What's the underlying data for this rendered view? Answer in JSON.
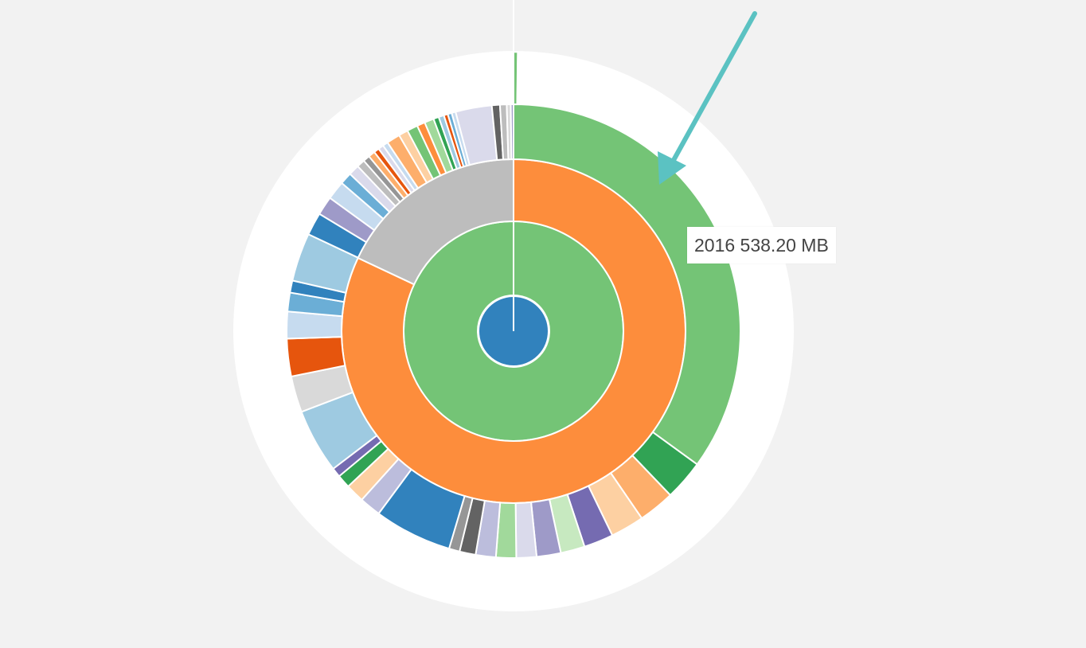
{
  "tooltip": {
    "label": "2016 538.20 MB"
  },
  "annotation": {
    "arrow_color": "#5bc2c2"
  },
  "chart_data": {
    "type": "sunburst",
    "root_color": "#3182bd",
    "ring1": [
      {
        "value": 100,
        "color": "#74c476"
      }
    ],
    "ring2": [
      {
        "value": 82.0,
        "color": "#fd8d3c"
      },
      {
        "value": 18.0,
        "color": "#bdbdbd"
      }
    ],
    "ring3": [
      {
        "value": 36.6,
        "color": "#74c476"
      },
      {
        "value": 3.0,
        "color": "#31a354"
      },
      {
        "value": 2.7,
        "color": "#fdae6b"
      },
      {
        "value": 2.5,
        "color": "#fdd0a2"
      },
      {
        "value": 2.2,
        "color": "#756bb1"
      },
      {
        "value": 1.8,
        "color": "#c7e9c0"
      },
      {
        "value": 1.8,
        "color": "#9e9ac8"
      },
      {
        "value": 1.5,
        "color": "#dadaeb"
      },
      {
        "value": 1.5,
        "color": "#a1d99b"
      },
      {
        "value": 1.5,
        "color": "#bcbddc"
      },
      {
        "value": 1.2,
        "color": "#636363"
      },
      {
        "value": 0.8,
        "color": "#969696"
      },
      {
        "value": 5.8,
        "color": "#3182bd"
      },
      {
        "value": 1.6,
        "color": "#bcbddc"
      },
      {
        "value": 1.4,
        "color": "#fdd0a2"
      },
      {
        "value": 1.0,
        "color": "#31a354"
      },
      {
        "value": 0.7,
        "color": "#756bb1"
      },
      {
        "value": 4.8,
        "color": "#9ecae1"
      },
      {
        "value": 2.7,
        "color": "#d9d9d9"
      },
      {
        "value": 2.8,
        "color": "#e6550d"
      },
      {
        "value": 2.0,
        "color": "#c6dbef"
      },
      {
        "value": 1.4,
        "color": "#6baed6"
      },
      {
        "value": 0.9,
        "color": "#3182bd"
      },
      {
        "value": 3.6,
        "color": "#9ecae1"
      },
      {
        "value": 1.7,
        "color": "#3182bd"
      },
      {
        "value": 1.4,
        "color": "#9e9ac8"
      },
      {
        "value": 1.4,
        "color": "#c6dbef"
      },
      {
        "value": 0.9,
        "color": "#6baed6"
      },
      {
        "value": 0.8,
        "color": "#dadaeb"
      },
      {
        "value": 0.6,
        "color": "#bdbdbd"
      },
      {
        "value": 0.5,
        "color": "#969696"
      },
      {
        "value": 0.5,
        "color": "#fdae6b"
      },
      {
        "value": 0.4,
        "color": "#e6550d"
      },
      {
        "value": 0.4,
        "color": "#dadaeb"
      },
      {
        "value": 0.4,
        "color": "#c6dbef"
      },
      {
        "value": 1.0,
        "color": "#fdae6b"
      },
      {
        "value": 0.7,
        "color": "#fdd0a2"
      },
      {
        "value": 0.8,
        "color": "#74c476"
      },
      {
        "value": 0.6,
        "color": "#fd8d3c"
      },
      {
        "value": 0.7,
        "color": "#a1d99b"
      },
      {
        "value": 0.4,
        "color": "#31a354"
      },
      {
        "value": 0.4,
        "color": "#9ecae1"
      },
      {
        "value": 0.3,
        "color": "#e6550d"
      },
      {
        "value": 0.3,
        "color": "#6baed6"
      },
      {
        "value": 0.3,
        "color": "#c6dbef"
      },
      {
        "value": 2.7,
        "color": "#dadaeb"
      },
      {
        "value": 0.6,
        "color": "#636363"
      },
      {
        "value": 0.5,
        "color": "#bdbdbd"
      },
      {
        "value": 0.3,
        "color": "#d9d9d9"
      },
      {
        "value": 0.2,
        "color": "#9e9ac8"
      }
    ]
  }
}
